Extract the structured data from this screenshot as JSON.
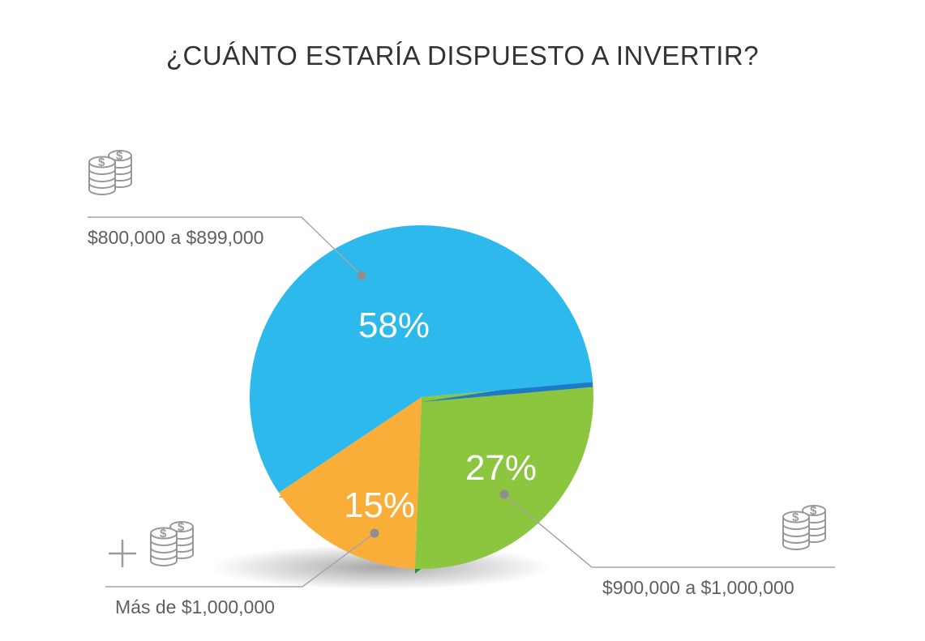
{
  "chart_data": {
    "type": "pie",
    "title": "¿CUÁNTO ESTARÍA DISPUESTO A INVERTIR?",
    "slices": [
      {
        "label": "$800,000 a $899,000",
        "value": 58,
        "display": "58%",
        "color": "#2db9ec",
        "edge": "#1f79c9"
      },
      {
        "label": "$900,000 a $1,000,000",
        "value": 27,
        "display": "27%",
        "color": "#8cc63f",
        "edge": "#2f8a3a"
      },
      {
        "label": "Más de $1,000,000",
        "value": 15,
        "display": "15%",
        "color": "#f9ae3a",
        "edge": "#d98a1c"
      }
    ]
  },
  "decor": {
    "coin_icon": "coin-stack-icon",
    "plus_icon": "plus-icon"
  }
}
